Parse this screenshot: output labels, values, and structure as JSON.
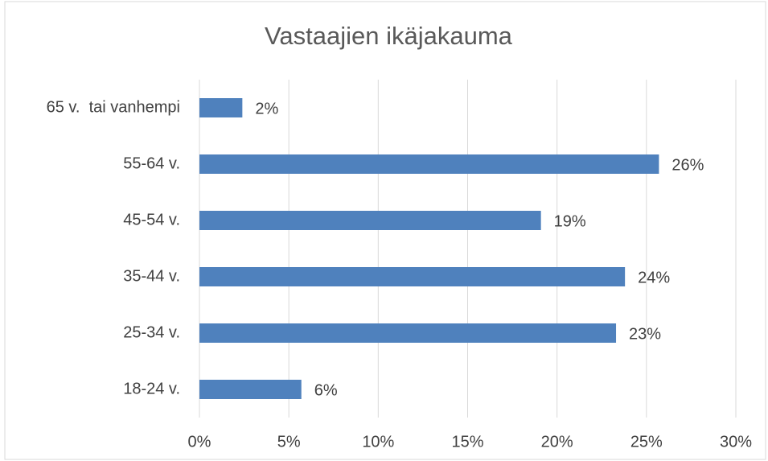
{
  "chart_data": {
    "type": "bar",
    "orientation": "horizontal",
    "title": "Vastaajien ikäjakauma",
    "categories": [
      "65 v.  tai vanhempi",
      "55-64 v.",
      "45-54 v.",
      "35-44 v.",
      "25-34 v.",
      "18-24 v."
    ],
    "values": [
      2.4,
      25.7,
      19.1,
      23.8,
      23.3,
      5.7
    ],
    "value_labels": [
      "2%",
      "26%",
      "19%",
      "24%",
      "23%",
      "6%"
    ],
    "color": "#4f81bd",
    "xlim": [
      0,
      30
    ],
    "xticks": [
      {
        "value": 0,
        "label": "0%"
      },
      {
        "value": 5,
        "label": "5%"
      },
      {
        "value": 10,
        "label": "10%"
      },
      {
        "value": 15,
        "label": "15%"
      },
      {
        "value": 20,
        "label": "20%"
      },
      {
        "value": 25,
        "label": "25%"
      },
      {
        "value": 30,
        "label": "30%"
      }
    ],
    "grid": true
  }
}
